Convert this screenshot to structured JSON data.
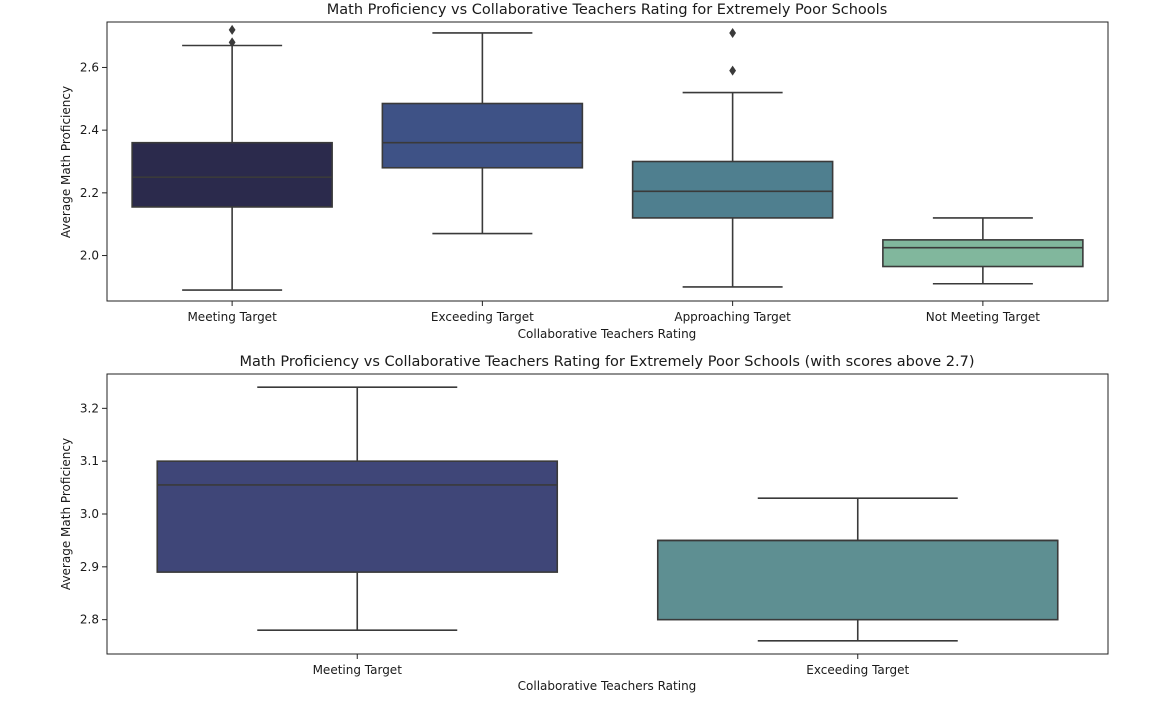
{
  "chart_data": [
    {
      "type": "box",
      "title": "Math Proficiency vs Collaborative Teachers Rating for Extremely Poor Schools",
      "xlabel": "Collaborative Teachers Rating",
      "ylabel": "Average Math Proficiency",
      "ylim": [
        1.855,
        2.745
      ],
      "yticks": [
        "2.0",
        "2.2",
        "2.4",
        "2.6"
      ],
      "ytick_values": [
        2.0,
        2.2,
        2.4,
        2.6
      ],
      "categories": [
        "Meeting Target",
        "Exceeding Target",
        "Approaching Target",
        "Not Meeting Target"
      ],
      "boxes": [
        {
          "category": "Meeting Target",
          "whislo": 1.89,
          "q1": 2.155,
          "med": 2.25,
          "q3": 2.36,
          "whishi": 2.67,
          "fliers": [
            2.68,
            2.72
          ],
          "color": "#2b2a4c"
        },
        {
          "category": "Exceeding Target",
          "whislo": 2.07,
          "q1": 2.28,
          "med": 2.36,
          "q3": 2.485,
          "whishi": 2.71,
          "fliers": [],
          "color": "#3e5286"
        },
        {
          "category": "Approaching Target",
          "whislo": 1.9,
          "q1": 2.12,
          "med": 2.205,
          "q3": 2.3,
          "whishi": 2.52,
          "fliers": [
            2.59,
            2.71
          ],
          "color": "#4f7f8f"
        },
        {
          "category": "Not Meeting Target",
          "whislo": 1.91,
          "q1": 1.965,
          "med": 2.025,
          "q3": 2.05,
          "whishi": 2.12,
          "fliers": [],
          "color": "#81b79d"
        }
      ],
      "grid": false
    },
    {
      "type": "box",
      "title": "Math Proficiency vs Collaborative Teachers Rating for Extremely Poor Schools (with scores above 2.7)",
      "xlabel": "Collaborative Teachers Rating",
      "ylabel": "Average Math Proficiency",
      "ylim": [
        2.735,
        3.265
      ],
      "yticks": [
        "2.8",
        "2.9",
        "3.0",
        "3.1",
        "3.2"
      ],
      "ytick_values": [
        2.8,
        2.9,
        3.0,
        3.1,
        3.2
      ],
      "categories": [
        "Meeting Target",
        "Exceeding Target"
      ],
      "boxes": [
        {
          "category": "Meeting Target",
          "whislo": 2.78,
          "q1": 2.89,
          "med": 3.055,
          "q3": 3.1,
          "whishi": 3.24,
          "fliers": [],
          "color": "#3f4678"
        },
        {
          "category": "Exceeding Target",
          "whislo": 2.76,
          "q1": 2.8,
          "med": 2.95,
          "q3": 2.95,
          "whishi": 3.03,
          "fliers": [],
          "color": "#5e8f92"
        }
      ],
      "grid": false
    }
  ]
}
